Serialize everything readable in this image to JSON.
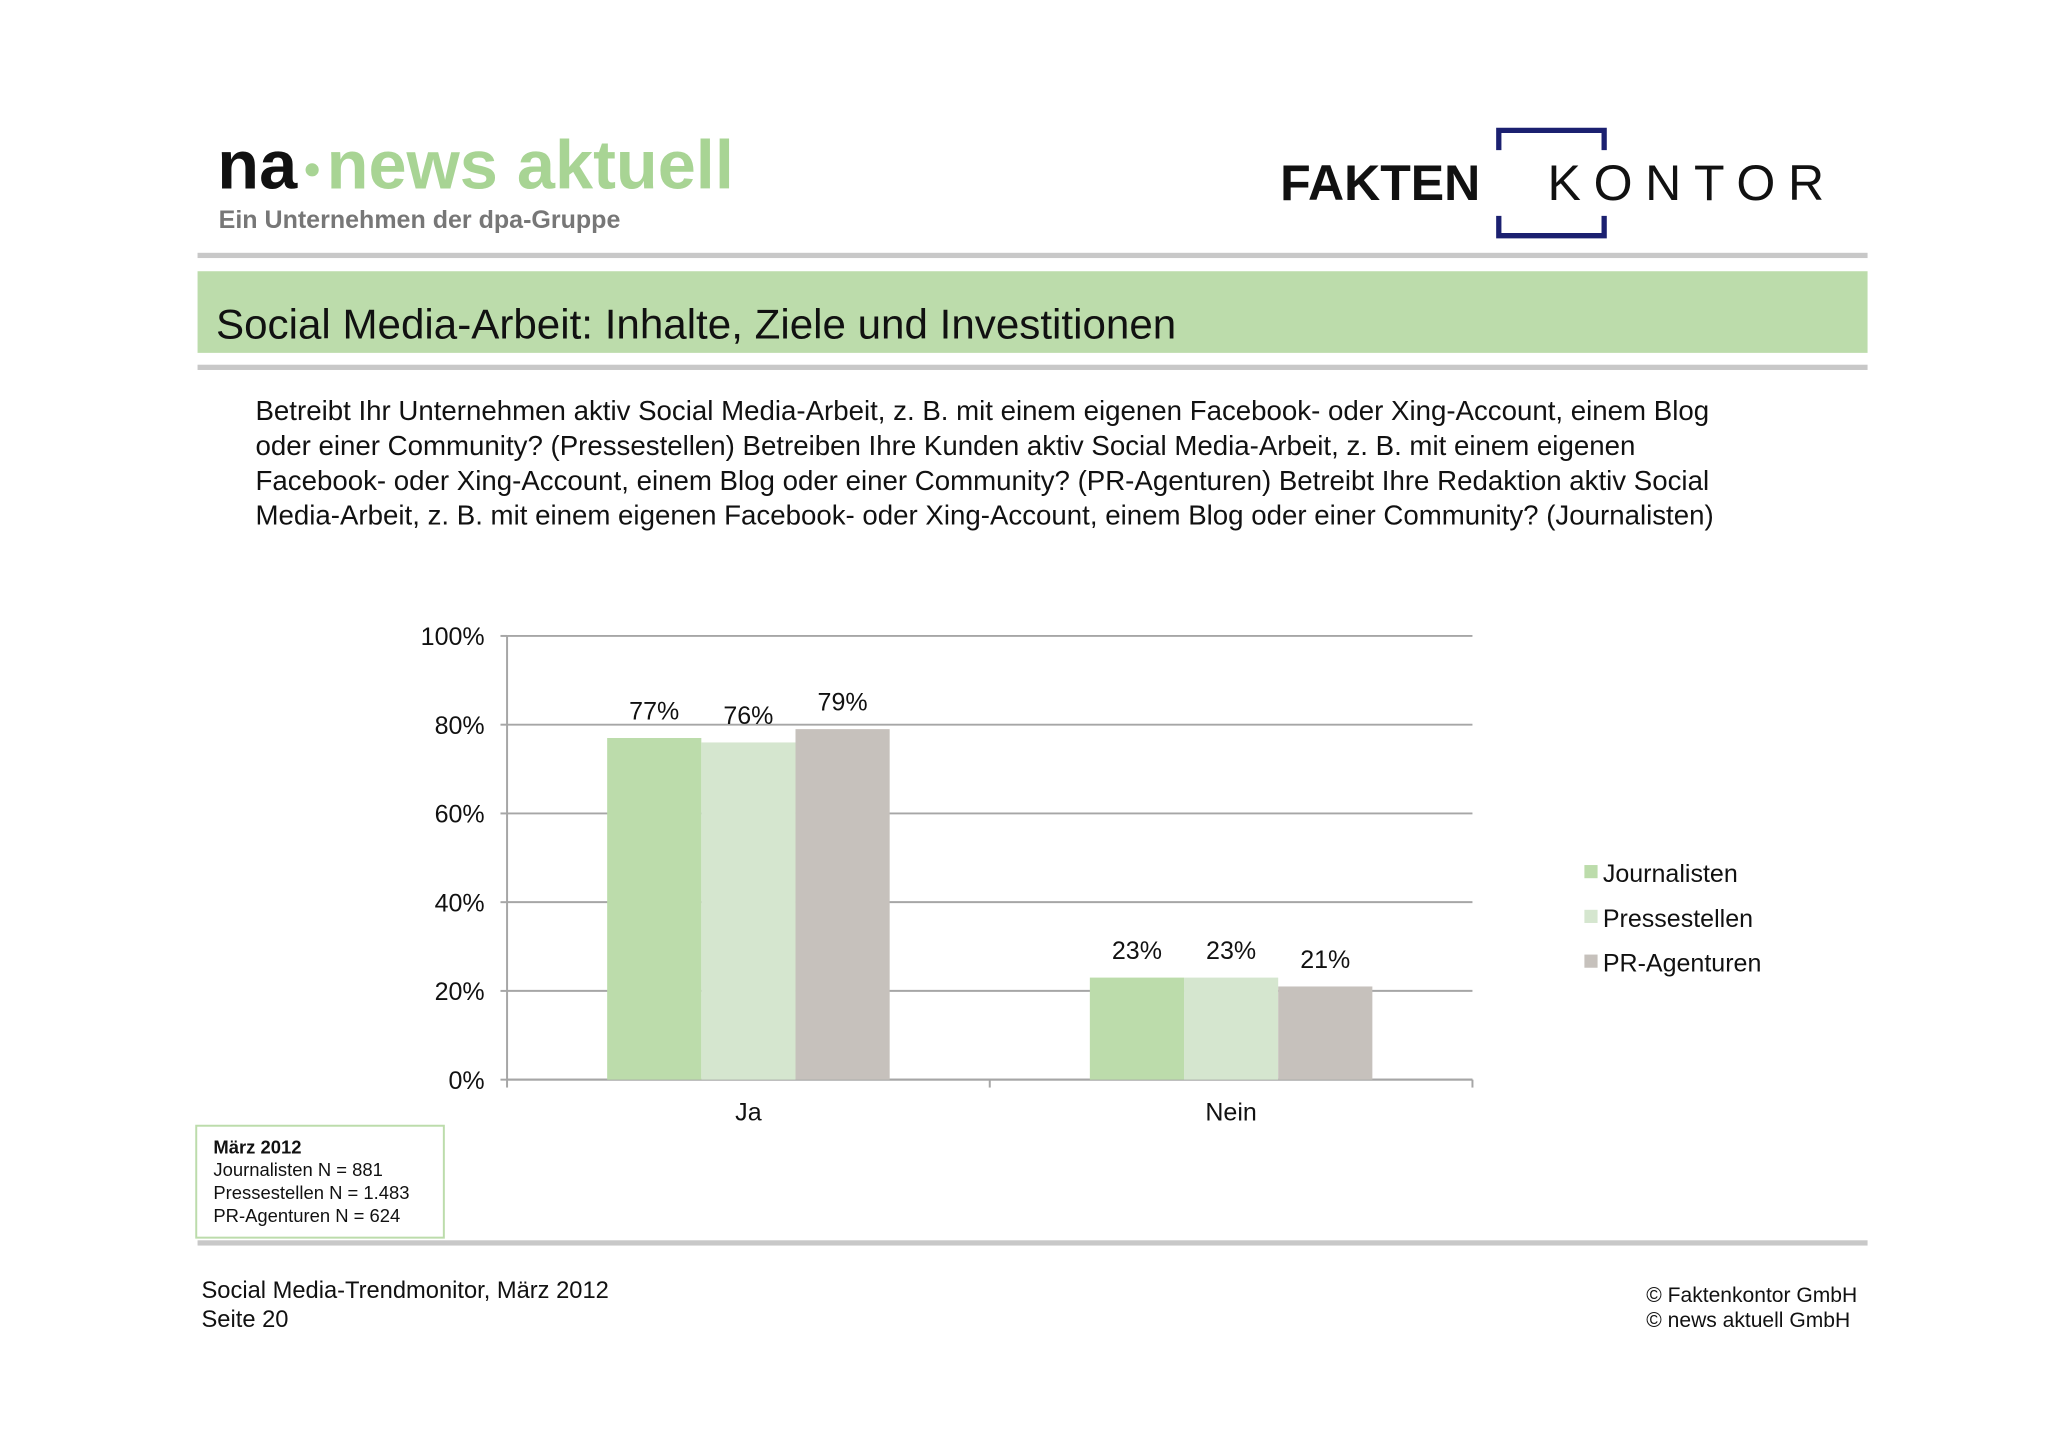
{
  "logo_left": {
    "part1": "na",
    "part2": "news aktuell",
    "tagline": "Ein Unternehmen der dpa-Gruppe"
  },
  "logo_right": {
    "part1": "FAKTEN",
    "part2": "KONTOR"
  },
  "header": {
    "title": "Social Media-Arbeit: Inhalte, Ziele und Investitionen"
  },
  "question": [
    "Betreibt Ihr Unternehmen aktiv Social Media-Arbeit, z. B. mit einem eigenen Facebook- oder Xing-Account, einem Blog",
    "oder einer Community? (Pressestellen) Betreiben Ihre Kunden aktiv Social Media-Arbeit, z. B. mit einem eigenen",
    "Facebook- oder Xing-Account, einem Blog oder einer Community? (PR-Agenturen) Betreibt Ihre Redaktion aktiv Social",
    "Media-Arbeit, z. B. mit einem eigenen Facebook- oder Xing-Account, einem Blog oder einer Community? (Journalisten)"
  ],
  "chart_data": {
    "type": "bar",
    "categories": [
      "Ja",
      "Nein"
    ],
    "series": [
      {
        "name": "Journalisten",
        "color": "#bcdcab",
        "values": [
          77,
          23
        ],
        "value_labels": [
          "77%",
          "23%"
        ]
      },
      {
        "name": "Pressestellen",
        "color": "#d5e6cf",
        "values": [
          76,
          23
        ],
        "value_labels": [
          "76%",
          "23%"
        ]
      },
      {
        "name": "PR-Agenturen",
        "color": "#c6c1bc",
        "values": [
          79,
          21
        ],
        "value_labels": [
          "79%",
          "21%"
        ]
      }
    ],
    "ylim": [
      0,
      100
    ],
    "yticks": [
      {
        "value": 0,
        "label": "0%"
      },
      {
        "value": 20,
        "label": "20%"
      },
      {
        "value": 40,
        "label": "40%"
      },
      {
        "value": 60,
        "label": "60%"
      },
      {
        "value": 80,
        "label": "80%"
      },
      {
        "value": 100,
        "label": "100%"
      }
    ],
    "grid": true,
    "legend": "right"
  },
  "note": {
    "title": "März 2012",
    "lines": [
      "Journalisten N = 881",
      "Pressestellen N = 1.483",
      "PR-Agenturen N = 624"
    ]
  },
  "footer": {
    "left": [
      "Social Media-Trendmonitor, März 2012",
      "Seite 20"
    ],
    "right": [
      "© Faktenkontor GmbH",
      "© news aktuell GmbH"
    ]
  }
}
